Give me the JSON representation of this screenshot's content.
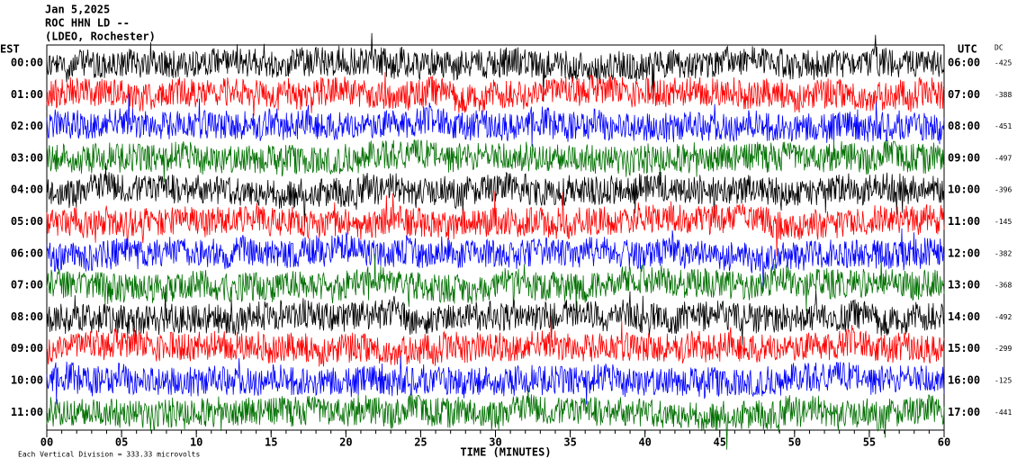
{
  "chart_data": {
    "type": "helicorder",
    "date": "Jan 5,2025",
    "station": "ROC HHN LD --",
    "location": "(LDEO, Rochester)",
    "left_axis_label": "EST",
    "right_axis_label": "UTC",
    "dc_label": "DC",
    "xlabel": "TIME (MINUTES)",
    "footer": "Each Vertical Division =  333.33 microvolts",
    "xlim": [
      0,
      60
    ],
    "xticks": [
      {
        "value": 0,
        "label": "00"
      },
      {
        "value": 5,
        "label": "05"
      },
      10,
      15,
      20,
      25,
      30,
      35,
      40,
      45,
      50,
      55,
      60
    ],
    "colors": [
      "#000000",
      "#ff0000",
      "#0000ff",
      "#007000"
    ],
    "rows": [
      {
        "est": "00:00",
        "utc": "06:00",
        "dc": -425
      },
      {
        "est": "01:00",
        "utc": "07:00",
        "dc": -388
      },
      {
        "est": "02:00",
        "utc": "08:00",
        "dc": -451
      },
      {
        "est": "03:00",
        "utc": "09:00",
        "dc": -497
      },
      {
        "est": "04:00",
        "utc": "10:00",
        "dc": -396
      },
      {
        "est": "05:00",
        "utc": "11:00",
        "dc": -145
      },
      {
        "est": "06:00",
        "utc": "12:00",
        "dc": -382
      },
      {
        "est": "07:00",
        "utc": "13:00",
        "dc": -368
      },
      {
        "est": "08:00",
        "utc": "14:00",
        "dc": -492
      },
      {
        "est": "09:00",
        "utc": "15:00",
        "dc": -299
      },
      {
        "est": "10:00",
        "utc": "16:00",
        "dc": -125
      },
      {
        "est": "11:00",
        "utc": "17:00",
        "dc": -441
      }
    ]
  }
}
